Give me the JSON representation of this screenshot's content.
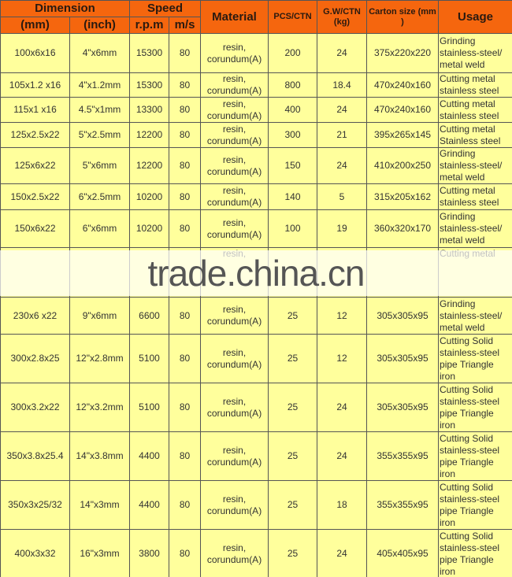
{
  "header": {
    "dimension": "Dimension",
    "mm": "(mm)",
    "inch": "(inch)",
    "speed": "Speed",
    "rpm": "r.p.m",
    "ms": "m/s",
    "material": "Material",
    "pcs": "PCS/CTN",
    "gw": "G.W/CTN (kg)",
    "carton": "Carton size (mm )",
    "usage": "Usage"
  },
  "rows": [
    {
      "mm": "100x6x16",
      "inch": "4\"x6mm",
      "rpm": "15300",
      "ms": "80",
      "material": "resin, corundum(A)",
      "pcs": "200",
      "gw": "24",
      "carton": "375x220x220",
      "usage": "Grinding stainless-steel/ metal weld"
    },
    {
      "mm": "105x1.2 x16",
      "inch": "4\"x1.2mm",
      "rpm": "15300",
      "ms": "80",
      "material": "resin, corundum(A)",
      "pcs": "800",
      "gw": "18.4",
      "carton": "470x240x160",
      "usage": "Cutting metal stainless steel"
    },
    {
      "mm": "115x1 x16",
      "inch": "4.5\"x1mm",
      "rpm": "13300",
      "ms": "80",
      "material": "resin, corundum(A)",
      "pcs": "400",
      "gw": "24",
      "carton": "470x240x160",
      "usage": "Cutting metal stainless steel"
    },
    {
      "mm": "125x2.5x22",
      "inch": "5\"x2.5mm",
      "rpm": "12200",
      "ms": "80",
      "material": "resin, corundum(A)",
      "pcs": "300",
      "gw": "21",
      "carton": "395x265x145",
      "usage": "Cutting metal Stainless steel"
    },
    {
      "mm": "125x6x22",
      "inch": "5\"x6mm",
      "rpm": "12200",
      "ms": "80",
      "material": "resin, corundum(A)",
      "pcs": "150",
      "gw": "24",
      "carton": "410x200x250",
      "usage": "Grinding stainless-steel/ metal weld"
    },
    {
      "mm": "150x2.5x22",
      "inch": "6\"x2.5mm",
      "rpm": "10200",
      "ms": "80",
      "material": "resin, corundum(A)",
      "pcs": "140",
      "gw": "5",
      "carton": "315x205x162",
      "usage": "Cutting metal stainless steel"
    },
    {
      "mm": "150x6x22",
      "inch": "6\"x6mm",
      "rpm": "10200",
      "ms": "80",
      "material": "resin, corundum(A)",
      "pcs": "100",
      "gw": "19",
      "carton": "360x320x170",
      "usage": "Grinding stainless-steel/ metal weld"
    },
    {
      "material": "resin,",
      "usage": "Cutting metal"
    },
    {
      "mm": "230x6 x22",
      "inch": "9\"x6mm",
      "rpm": "6600",
      "ms": "80",
      "material": "resin, corundum(A)",
      "pcs": "25",
      "gw": "12",
      "carton": "305x305x95",
      "usage": "Grinding stainless-steel/ metal weld"
    },
    {
      "mm": "300x2.8x25",
      "inch": "12\"x2.8mm",
      "rpm": "5100",
      "ms": "80",
      "material": "resin, corundum(A)",
      "pcs": "25",
      "gw": "12",
      "carton": "305x305x95",
      "usage": "Cutting Solid stainless-steel pipe Triangle iron"
    },
    {
      "mm": "300x3.2x22",
      "inch": "12\"x3.2mm",
      "rpm": "5100",
      "ms": "80",
      "material": "resin, corundum(A)",
      "pcs": "25",
      "gw": "24",
      "carton": "305x305x95",
      "usage": "Cutting Solid stainless-steel pipe Triangle iron"
    },
    {
      "mm": "350x3.8x25.4",
      "inch": "14\"x3.8mm",
      "rpm": "4400",
      "ms": "80",
      "material": "resin, corundum(A)",
      "pcs": "25",
      "gw": "24",
      "carton": "355x355x95",
      "usage": "Cutting Solid stainless-steel pipe Triangle iron"
    },
    {
      "mm": "350x3x25/32",
      "inch": "14\"x3mm",
      "rpm": "4400",
      "ms": "80",
      "material": "resin, corundum(A)",
      "pcs": "25",
      "gw": "18",
      "carton": "355x355x95",
      "usage": "Cutting Solid stainless-steel pipe Triangle iron"
    },
    {
      "mm": "400x3x32",
      "inch": "16\"x3mm",
      "rpm": "3800",
      "ms": "80",
      "material": "resin, corundum(A)",
      "pcs": "25",
      "gw": "24",
      "carton": "405x405x95",
      "usage": "Cutting Solid stainless-steel pipe Triangle iron"
    }
  ],
  "watermark": "trade.china.cn"
}
